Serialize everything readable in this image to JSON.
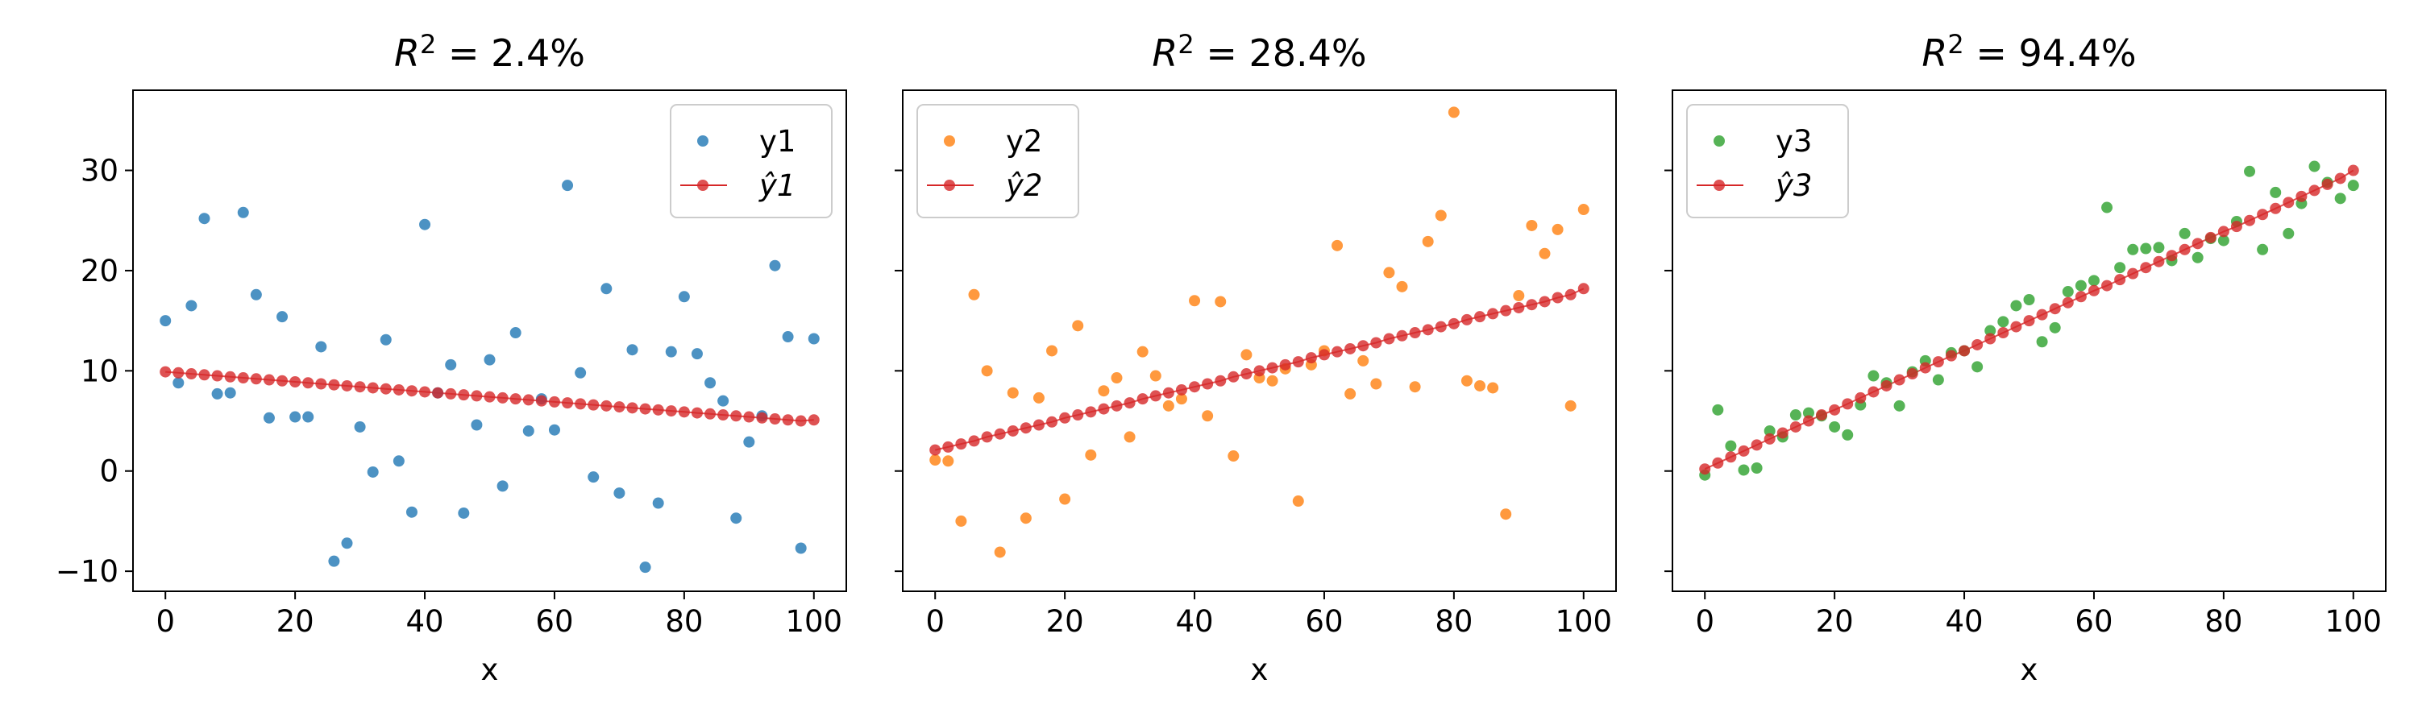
{
  "chart_data": [
    {
      "type": "scatter",
      "title_prefix": "R",
      "title_sup": "2",
      "title_value": " =  2.4%",
      "xlabel": "x",
      "ylabel": "",
      "xlim": [
        -5,
        105
      ],
      "ylim": [
        -12,
        38
      ],
      "xticks": [
        0,
        20,
        40,
        60,
        80,
        100
      ],
      "yticks": [
        -10,
        0,
        10,
        20,
        30
      ],
      "show_ytick_labels": true,
      "grid": false,
      "legend_position": "top-right",
      "scatter_series": {
        "name": "y1",
        "color": "#1f77b4",
        "x": [
          0,
          2,
          4,
          6,
          8,
          10,
          12,
          14,
          16,
          18,
          20,
          22,
          24,
          26,
          28,
          30,
          32,
          34,
          36,
          38,
          40,
          42,
          44,
          46,
          48,
          50,
          52,
          54,
          56,
          58,
          60,
          62,
          64,
          66,
          68,
          70,
          72,
          74,
          76,
          78,
          80,
          82,
          84,
          86,
          88,
          90,
          92,
          94,
          96,
          98,
          100
        ],
        "y": [
          15.0,
          8.8,
          16.5,
          25.2,
          7.7,
          7.8,
          25.8,
          17.6,
          5.3,
          15.4,
          5.4,
          5.4,
          12.4,
          -9.0,
          -7.2,
          4.4,
          -0.1,
          13.1,
          1.0,
          -4.1,
          24.6,
          7.8,
          10.6,
          -4.2,
          4.6,
          11.1,
          -1.5,
          13.8,
          4.0,
          7.2,
          4.1,
          28.5,
          9.8,
          -0.6,
          18.2,
          -2.2,
          12.1,
          -9.6,
          -3.2,
          11.9,
          17.4,
          11.7,
          8.8,
          7.0,
          -4.7,
          2.9,
          5.5,
          20.5,
          13.4,
          -7.7,
          13.2
        ]
      },
      "fit_series": {
        "name": "ŷ1",
        "color": "#d62728",
        "x": [
          0,
          2,
          4,
          6,
          8,
          10,
          12,
          14,
          16,
          18,
          20,
          22,
          24,
          26,
          28,
          30,
          32,
          34,
          36,
          38,
          40,
          42,
          44,
          46,
          48,
          50,
          52,
          54,
          56,
          58,
          60,
          62,
          64,
          66,
          68,
          70,
          72,
          74,
          76,
          78,
          80,
          82,
          84,
          86,
          88,
          90,
          92,
          94,
          96,
          98,
          100
        ],
        "y": [
          9.9,
          9.8,
          9.7,
          9.6,
          9.5,
          9.4,
          9.3,
          9.2,
          9.1,
          9.0,
          8.9,
          8.8,
          8.7,
          8.6,
          8.5,
          8.4,
          8.3,
          8.2,
          8.1,
          8.0,
          7.9,
          7.8,
          7.7,
          7.6,
          7.5,
          7.4,
          7.3,
          7.2,
          7.1,
          7.0,
          6.9,
          6.8,
          6.7,
          6.6,
          6.5,
          6.4,
          6.3,
          6.2,
          6.1,
          6.0,
          5.9,
          5.8,
          5.7,
          5.6,
          5.5,
          5.4,
          5.3,
          5.2,
          5.1,
          5.0,
          5.1
        ]
      }
    },
    {
      "type": "scatter",
      "title_prefix": "R",
      "title_sup": "2",
      "title_value": " =  28.4%",
      "xlabel": "x",
      "ylabel": "",
      "xlim": [
        -5,
        105
      ],
      "ylim": [
        -12,
        38
      ],
      "xticks": [
        0,
        20,
        40,
        60,
        80,
        100
      ],
      "yticks": [
        -10,
        0,
        10,
        20,
        30
      ],
      "show_ytick_labels": false,
      "grid": false,
      "legend_position": "top-left",
      "scatter_series": {
        "name": "y2",
        "color": "#ff7f0e",
        "x": [
          0,
          2,
          4,
          6,
          8,
          10,
          12,
          14,
          16,
          18,
          20,
          22,
          24,
          26,
          28,
          30,
          32,
          34,
          36,
          38,
          40,
          42,
          44,
          46,
          48,
          50,
          52,
          54,
          56,
          58,
          60,
          62,
          64,
          66,
          68,
          70,
          72,
          74,
          76,
          78,
          80,
          82,
          84,
          86,
          88,
          90,
          92,
          94,
          96,
          98,
          100
        ],
        "y": [
          1.1,
          1.0,
          -5.0,
          17.6,
          10.0,
          -8.1,
          7.8,
          -4.7,
          7.3,
          12.0,
          -2.8,
          14.5,
          1.6,
          8.0,
          9.3,
          3.4,
          11.9,
          9.5,
          6.5,
          7.2,
          17.0,
          5.5,
          16.9,
          1.5,
          11.6,
          9.3,
          9.0,
          10.2,
          -3.0,
          10.6,
          12.0,
          22.5,
          7.7,
          11.0,
          8.7,
          19.8,
          18.4,
          8.4,
          22.9,
          25.5,
          35.8,
          9.0,
          8.5,
          8.3,
          -4.3,
          17.5,
          24.5,
          21.7,
          24.1,
          6.5,
          26.1
        ]
      },
      "fit_series": {
        "name": "ŷ2",
        "color": "#d62728",
        "x": [
          0,
          2,
          4,
          6,
          8,
          10,
          12,
          14,
          16,
          18,
          20,
          22,
          24,
          26,
          28,
          30,
          32,
          34,
          36,
          38,
          40,
          42,
          44,
          46,
          48,
          50,
          52,
          54,
          56,
          58,
          60,
          62,
          64,
          66,
          68,
          70,
          72,
          74,
          76,
          78,
          80,
          82,
          84,
          86,
          88,
          90,
          92,
          94,
          96,
          98,
          100
        ],
        "y": [
          2.1,
          2.4,
          2.7,
          3.0,
          3.4,
          3.7,
          4.0,
          4.3,
          4.6,
          4.9,
          5.3,
          5.6,
          5.9,
          6.2,
          6.5,
          6.8,
          7.2,
          7.5,
          7.8,
          8.1,
          8.4,
          8.7,
          9.0,
          9.4,
          9.7,
          10.0,
          10.3,
          10.6,
          10.9,
          11.3,
          11.6,
          11.9,
          12.2,
          12.5,
          12.8,
          13.2,
          13.5,
          13.8,
          14.1,
          14.4,
          14.7,
          15.1,
          15.4,
          15.7,
          16.0,
          16.3,
          16.6,
          16.9,
          17.3,
          17.6,
          18.2
        ]
      }
    },
    {
      "type": "scatter",
      "title_prefix": "R",
      "title_sup": "2",
      "title_value": " =  94.4%",
      "xlabel": "x",
      "ylabel": "",
      "xlim": [
        -5,
        105
      ],
      "ylim": [
        -12,
        38
      ],
      "xticks": [
        0,
        20,
        40,
        60,
        80,
        100
      ],
      "yticks": [
        -10,
        0,
        10,
        20,
        30
      ],
      "show_ytick_labels": false,
      "grid": false,
      "legend_position": "top-left",
      "scatter_series": {
        "name": "y3",
        "color": "#2ca02c",
        "x": [
          0,
          2,
          4,
          6,
          8,
          10,
          12,
          14,
          16,
          18,
          20,
          22,
          24,
          26,
          28,
          30,
          32,
          34,
          36,
          38,
          40,
          42,
          44,
          46,
          48,
          50,
          52,
          54,
          56,
          58,
          60,
          62,
          64,
          66,
          68,
          70,
          72,
          74,
          76,
          78,
          80,
          82,
          84,
          86,
          88,
          90,
          92,
          94,
          96,
          98,
          100
        ],
        "y": [
          -0.4,
          6.1,
          2.5,
          0.1,
          0.3,
          4.0,
          3.4,
          5.6,
          5.8,
          5.5,
          4.4,
          3.6,
          6.6,
          9.5,
          8.8,
          6.5,
          9.9,
          11.0,
          9.1,
          11.8,
          12.0,
          10.4,
          14.0,
          14.9,
          16.5,
          17.1,
          12.9,
          14.3,
          17.9,
          18.5,
          19.0,
          26.3,
          20.3,
          22.1,
          22.2,
          22.3,
          21.0,
          23.7,
          21.3,
          23.2,
          23.0,
          24.9,
          29.9,
          22.1,
          27.8,
          23.7,
          26.7,
          30.4,
          28.8,
          27.2,
          28.5
        ]
      },
      "fit_series": {
        "name": "ŷ3",
        "color": "#d62728",
        "x": [
          0,
          2,
          4,
          6,
          8,
          10,
          12,
          14,
          16,
          18,
          20,
          22,
          24,
          26,
          28,
          30,
          32,
          34,
          36,
          38,
          40,
          42,
          44,
          46,
          48,
          50,
          52,
          54,
          56,
          58,
          60,
          62,
          64,
          66,
          68,
          70,
          72,
          74,
          76,
          78,
          80,
          82,
          84,
          86,
          88,
          90,
          92,
          94,
          96,
          98,
          100
        ],
        "y": [
          0.2,
          0.8,
          1.4,
          2.0,
          2.6,
          3.2,
          3.8,
          4.4,
          5.0,
          5.6,
          6.1,
          6.7,
          7.3,
          7.9,
          8.5,
          9.1,
          9.7,
          10.3,
          10.9,
          11.5,
          12.0,
          12.6,
          13.2,
          13.8,
          14.4,
          15.0,
          15.6,
          16.2,
          16.8,
          17.4,
          18.0,
          18.5,
          19.1,
          19.7,
          20.3,
          20.9,
          21.5,
          22.1,
          22.7,
          23.3,
          23.9,
          24.4,
          25.0,
          25.6,
          26.2,
          26.8,
          27.4,
          28.0,
          28.6,
          29.2,
          30.0
        ]
      }
    }
  ]
}
